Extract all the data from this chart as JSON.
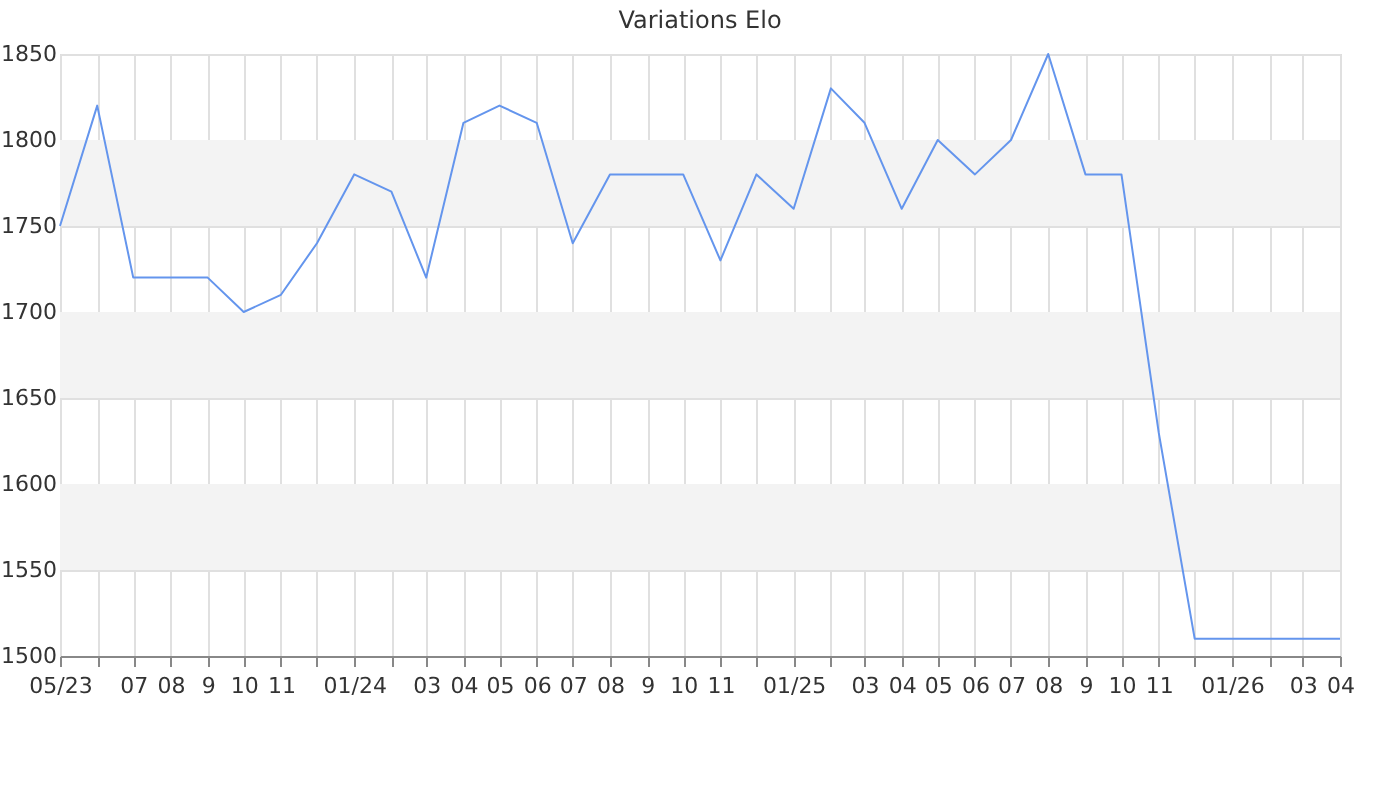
{
  "chart_data": {
    "type": "line",
    "title": "Variations Elo",
    "x": [
      "2023-05",
      "2023-06",
      "2023-07",
      "2023-08",
      "2023-09",
      "2023-10",
      "2023-11",
      "2023-12",
      "2024-01",
      "2024-02",
      "2024-03",
      "2024-04",
      "2024-05",
      "2024-06",
      "2024-07",
      "2024-08",
      "2024-09",
      "2024-10",
      "2024-11",
      "2024-12",
      "2025-01",
      "2025-02",
      "2025-03",
      "2025-04",
      "2025-05",
      "2025-06",
      "2025-07",
      "2025-08",
      "2025-09",
      "2025-10",
      "2025-11",
      "2025-12",
      "2026-01",
      "2026-02",
      "2026-03",
      "2026-04"
    ],
    "series": [
      {
        "color": "#6495ed",
        "values": [
          1750,
          1820,
          1720,
          1720,
          1720,
          1700,
          1710,
          1740,
          1780,
          1770,
          1720,
          1810,
          1820,
          1810,
          1740,
          1780,
          1780,
          1780,
          1730,
          1780,
          1760,
          1830,
          1810,
          1760,
          1800,
          1780,
          1800,
          1850,
          1780,
          1780,
          1630,
          1510,
          1510,
          1510,
          1510,
          1510
        ]
      }
    ],
    "xlim": [
      "2023-05",
      "2026-04"
    ],
    "xticks": [
      {
        "value": "2023-05",
        "label": "05/23"
      },
      {
        "value": "2023-06",
        "label": null
      },
      {
        "value": "2023-07",
        "label": "07"
      },
      {
        "value": "2023-08",
        "label": "08"
      },
      {
        "value": "2023-09",
        "label": "9"
      },
      {
        "value": "2023-10",
        "label": "10"
      },
      {
        "value": "2023-11",
        "label": "11"
      },
      {
        "value": "2023-12",
        "label": null
      },
      {
        "value": "2024-01",
        "label": "01/24"
      },
      {
        "value": "2024-02",
        "label": null
      },
      {
        "value": "2024-03",
        "label": "03"
      },
      {
        "value": "2024-04",
        "label": "04"
      },
      {
        "value": "2024-05",
        "label": "05"
      },
      {
        "value": "2024-06",
        "label": "06"
      },
      {
        "value": "2024-07",
        "label": "07"
      },
      {
        "value": "2024-08",
        "label": "08"
      },
      {
        "value": "2024-09",
        "label": "9"
      },
      {
        "value": "2024-10",
        "label": "10"
      },
      {
        "value": "2024-11",
        "label": "11"
      },
      {
        "value": "2024-12",
        "label": null
      },
      {
        "value": "2025-01",
        "label": "01/25"
      },
      {
        "value": "2025-02",
        "label": null
      },
      {
        "value": "2025-03",
        "label": "03"
      },
      {
        "value": "2025-04",
        "label": "04"
      },
      {
        "value": "2025-05",
        "label": "05"
      },
      {
        "value": "2025-06",
        "label": "06"
      },
      {
        "value": "2025-07",
        "label": "07"
      },
      {
        "value": "2025-08",
        "label": "08"
      },
      {
        "value": "2025-09",
        "label": "9"
      },
      {
        "value": "2025-10",
        "label": "10"
      },
      {
        "value": "2025-11",
        "label": "11"
      },
      {
        "value": "2025-12",
        "label": null
      },
      {
        "value": "2026-01",
        "label": "01/26"
      },
      {
        "value": "2026-02",
        "label": null
      },
      {
        "value": "2026-03",
        "label": "03"
      },
      {
        "value": "2026-04",
        "label": "04"
      }
    ],
    "ylim": [
      1500,
      1850
    ],
    "yticks": [
      1500,
      1550,
      1600,
      1650,
      1700,
      1750,
      1800,
      1850
    ],
    "bands": [
      {
        "axis": "y",
        "from": 1550,
        "to": 1600,
        "color": "#f3f3f3"
      },
      {
        "axis": "y",
        "from": 1650,
        "to": 1700,
        "color": "#f3f3f3"
      },
      {
        "axis": "y",
        "from": 1750,
        "to": 1800,
        "color": "#f3f3f3"
      }
    ],
    "grid": true,
    "marker": "none",
    "line_style": "solid"
  }
}
